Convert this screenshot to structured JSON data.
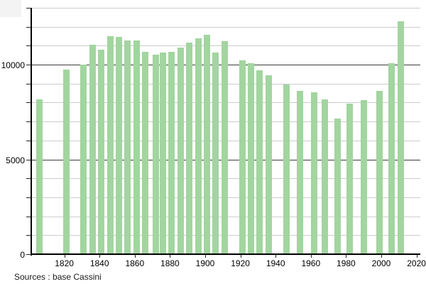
{
  "source_note": "Sources : base Cassini",
  "colors": {
    "bar": "#a2d59f",
    "minor_grid": "#cccccc",
    "major_grid": "#3c3c3c",
    "axis": "#000000"
  },
  "chart_data": {
    "type": "bar",
    "title": "",
    "xlabel": "",
    "ylabel": "",
    "legend": "none",
    "grid": "horizontal minor lines every 1000, dark lines at 5000 and 10000",
    "xlim": [
      1801,
      2023
    ],
    "ylim": [
      0,
      13000
    ],
    "x": [
      1806,
      1821,
      1831,
      1836,
      1841,
      1846,
      1851,
      1856,
      1861,
      1866,
      1872,
      1876,
      1881,
      1886,
      1891,
      1896,
      1901,
      1906,
      1911,
      1921,
      1926,
      1931,
      1936,
      1946,
      1954,
      1962,
      1968,
      1975,
      1982,
      1990,
      1999,
      2006,
      2011
    ],
    "values": [
      8160,
      9740,
      10010,
      11040,
      10790,
      11500,
      11480,
      11260,
      11280,
      10660,
      10540,
      10650,
      10660,
      10910,
      11170,
      11390,
      11580,
      10650,
      11230,
      10220,
      10060,
      9690,
      9440,
      8940,
      8630,
      8540,
      8160,
      7140,
      7950,
      8130,
      8600,
      10080,
      12300
    ],
    "x_tick_years": [
      1820,
      1840,
      1860,
      1880,
      1900,
      1920,
      1940,
      1960,
      1980,
      2000,
      2020
    ],
    "x_tick_labels": [
      "1820",
      "1840",
      "1860",
      "1880",
      "1900",
      "1920",
      "1940",
      "1960",
      "1980",
      "2000",
      "2020"
    ],
    "y_tick_values": [
      0,
      5000,
      10000
    ],
    "y_tick_labels": [
      "0",
      "5000",
      "10000"
    ],
    "minor_grid_step": 1000,
    "major_grid_values": [
      5000,
      10000
    ]
  }
}
